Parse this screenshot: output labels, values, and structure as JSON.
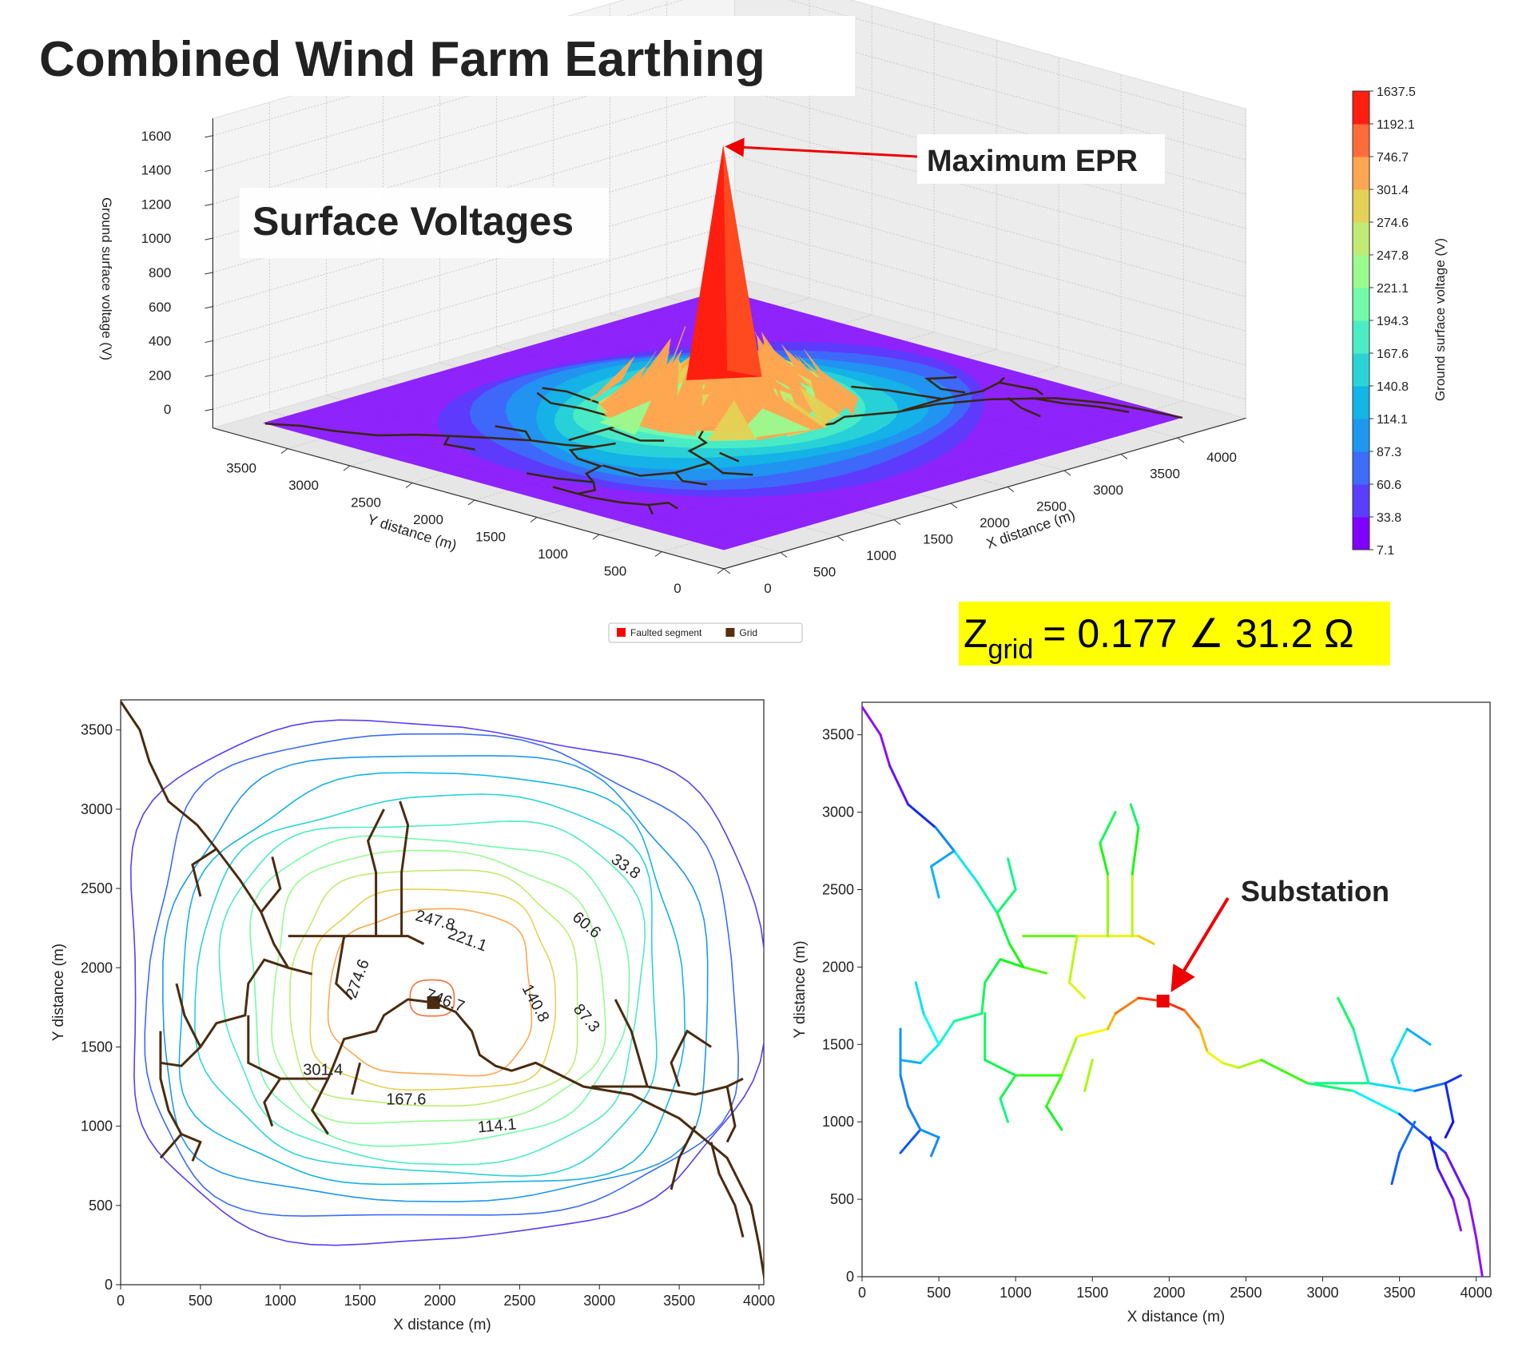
{
  "title": "Combined Wind Farm Earthing",
  "chart_data": [
    {
      "type": "surface3d",
      "subtitle": "Surface Voltages",
      "annotation": "Maximum EPR",
      "x_label": "X distance (m)",
      "y_label": "Y distance (m)",
      "z_label": "Ground surface voltage (V)",
      "xlim": [
        0,
        4600
      ],
      "ylim": [
        0,
        4100
      ],
      "zlim": [
        -110,
        1700
      ],
      "xticks": [
        0,
        500,
        1000,
        1500,
        2000,
        2500,
        3000,
        3500,
        4000
      ],
      "yticks": [
        0,
        500,
        1000,
        1500,
        2000,
        2500,
        3000,
        3500
      ],
      "zticks": [
        0,
        200,
        400,
        600,
        800,
        1000,
        1200,
        1400,
        1600
      ],
      "grid": true,
      "colorbar": {
        "label": "Ground surface voltage (V)",
        "levels": [
          7.1,
          33.8,
          60.6,
          87.3,
          114.1,
          140.8,
          167.6,
          194.3,
          221.1,
          247.8,
          274.6,
          301.4,
          746.7,
          1192.1,
          1637.5
        ],
        "colors": [
          "#7f00ff",
          "#5a3dfd",
          "#3c6cf8",
          "#1e97f0",
          "#13b4e6",
          "#2ad4d6",
          "#4cecc4",
          "#72fbaa",
          "#9afb8f",
          "#c0ec74",
          "#e4d256",
          "#ffa650",
          "#ff6c3a",
          "#ff1e10"
        ]
      },
      "legend": [
        {
          "name": "Faulted segment",
          "color": "#ff0000"
        },
        {
          "name": "Grid",
          "color": "#5a2d0c"
        }
      ],
      "impedance": {
        "symbol": "Z",
        "subscript": "grid",
        "value": "= 0.177 ∠ 31.2 Ω"
      }
    },
    {
      "type": "contour",
      "x_label": "X distance (m)",
      "y_label": "Y distance (m)",
      "xlim": [
        0,
        4030
      ],
      "ylim": [
        0,
        3690
      ],
      "xticks": [
        0,
        500,
        1000,
        1500,
        2000,
        2500,
        3000,
        3500,
        4000
      ],
      "yticks": [
        0,
        500,
        1000,
        1500,
        2000,
        2500,
        3000,
        3500
      ],
      "contour_labels": [
        33.8,
        60.6,
        87.3,
        114.1,
        140.8,
        167.6,
        221.1,
        247.8,
        274.6,
        301.4,
        746.7
      ],
      "grid_color": "#4a2c10"
    },
    {
      "type": "network",
      "x_label": "X distance (m)",
      "y_label": "Y distance (m)",
      "xlim": [
        0,
        4090
      ],
      "ylim": [
        0,
        3710
      ],
      "xticks": [
        0,
        500,
        1000,
        1500,
        2000,
        2500,
        3000,
        3500,
        4000
      ],
      "yticks": [
        0,
        500,
        1000,
        1500,
        2000,
        2500,
        3000,
        3500
      ],
      "annotation": "Substation"
    }
  ]
}
